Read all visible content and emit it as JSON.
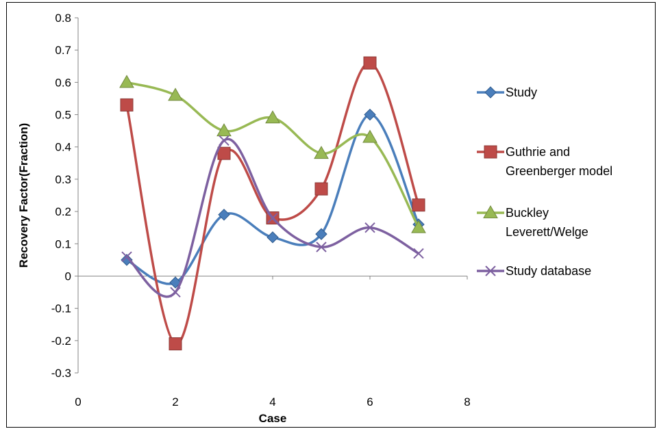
{
  "chart_data": {
    "type": "line",
    "title": "",
    "xlabel": "Case",
    "ylabel": "Recovery Factor(Fraction)",
    "xlim": [
      0,
      8
    ],
    "ylim": [
      -0.3,
      0.8
    ],
    "x_ticks": [
      0,
      2,
      4,
      6,
      8
    ],
    "y_ticks": [
      -0.3,
      -0.2,
      -0.1,
      0,
      0.1,
      0.2,
      0.3,
      0.4,
      0.5,
      0.6,
      0.7,
      0.8
    ],
    "x_tick_labels": [
      "0",
      "2",
      "4",
      "6",
      "8"
    ],
    "y_tick_labels": [
      "-0.3",
      "-0.2",
      "-0.1",
      "0",
      "0.1",
      "0.2",
      "0.3",
      "0.4",
      "0.5",
      "0.6",
      "0.7",
      "0.8"
    ],
    "grid": false,
    "smoothed": true,
    "legend_position": "right",
    "x": [
      1,
      2,
      3,
      4,
      5,
      6,
      7
    ],
    "series": [
      {
        "name": "Study",
        "legend_lines": [
          "Study"
        ],
        "color": "#4a7ebb",
        "marker": "diamond",
        "values": [
          0.05,
          -0.02,
          0.19,
          0.12,
          0.13,
          0.5,
          0.16
        ]
      },
      {
        "name": "Guthrie and Greenberger model",
        "legend_lines": [
          "Guthrie and",
          "Greenberger model"
        ],
        "color": "#be4b48",
        "marker": "square",
        "values": [
          0.53,
          -0.21,
          0.38,
          0.18,
          0.27,
          0.66,
          0.22
        ]
      },
      {
        "name": "Buckley Leverett/Welge",
        "legend_lines": [
          "Buckley",
          "Leverett/Welge"
        ],
        "color": "#98b954",
        "marker": "triangle",
        "values": [
          0.6,
          0.56,
          0.45,
          0.49,
          0.38,
          0.43,
          0.15
        ]
      },
      {
        "name": "Study database",
        "legend_lines": [
          "Study database"
        ],
        "color": "#7d60a0",
        "marker": "x",
        "values": [
          0.06,
          -0.05,
          0.42,
          0.18,
          0.09,
          0.15,
          0.07
        ]
      }
    ]
  }
}
